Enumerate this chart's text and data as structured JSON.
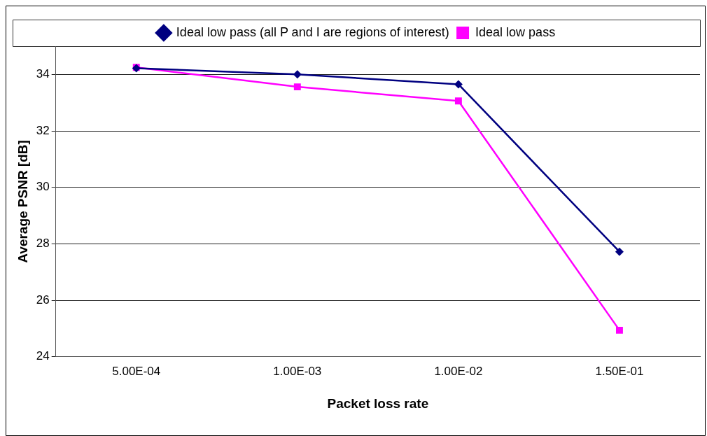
{
  "chart_data": {
    "type": "line",
    "xlabel": "Packet loss rate",
    "ylabel": "Average PSNR [dB]",
    "categories": [
      "5.00E-04",
      "1.00E-03",
      "1.00E-02",
      "1.50E-01"
    ],
    "series": [
      {
        "name": "Ideal low pass",
        "color": "#ff00ff",
        "marker": "square",
        "values": [
          34.25,
          33.56,
          33.06,
          24.94
        ]
      },
      {
        "name": "Ideal low pass (all P and I are regions of interest)",
        "color": "#000080",
        "marker": "diamond",
        "values": [
          34.22,
          34.0,
          33.65,
          27.72
        ]
      }
    ],
    "ylim": [
      24,
      35
    ],
    "yticks": [
      24,
      26,
      28,
      30,
      32,
      34
    ],
    "grid": "y",
    "legend": "top"
  }
}
